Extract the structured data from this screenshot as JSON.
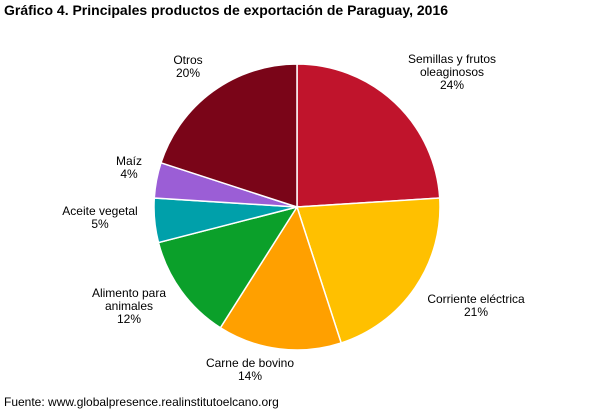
{
  "title": "Gráfico 4. Principales productos de exportación de Paraguay, 2016",
  "source": "Fuente: www.globalpresence.realinstitutoelcano.org",
  "chart_data": {
    "type": "pie",
    "title": "Gráfico 4. Principales productos de exportación de Paraguay, 2016",
    "slices": [
      {
        "name": "Semillas y frutos oleaginosos",
        "label_lines": [
          "Semillas y frutos",
          "oleaginosos"
        ],
        "value": 24,
        "value_label": "24%",
        "color": "#c0142c"
      },
      {
        "name": "Corriente eléctrica",
        "label_lines": [
          "Corriente eléctrica"
        ],
        "value": 21,
        "value_label": "21%",
        "color": "#ffc000"
      },
      {
        "name": "Carne de bovino",
        "label_lines": [
          "Carne de bovino"
        ],
        "value": 14,
        "value_label": "14%",
        "color": "#ffa000"
      },
      {
        "name": "Alimento para animales",
        "label_lines": [
          "Alimento para",
          "animales"
        ],
        "value": 12,
        "value_label": "12%",
        "color": "#0ba02a"
      },
      {
        "name": "Aceite vegetal",
        "label_lines": [
          "Aceite vegetal"
        ],
        "value": 5,
        "value_label": "5%",
        "color": "#00a0aa"
      },
      {
        "name": "Maíz",
        "label_lines": [
          "Maíz"
        ],
        "value": 4,
        "value_label": "4%",
        "color": "#9b5ed6"
      },
      {
        "name": "Otros",
        "label_lines": [
          "Otros"
        ],
        "value": 20,
        "value_label": "20%",
        "color": "#7a0518"
      }
    ]
  }
}
